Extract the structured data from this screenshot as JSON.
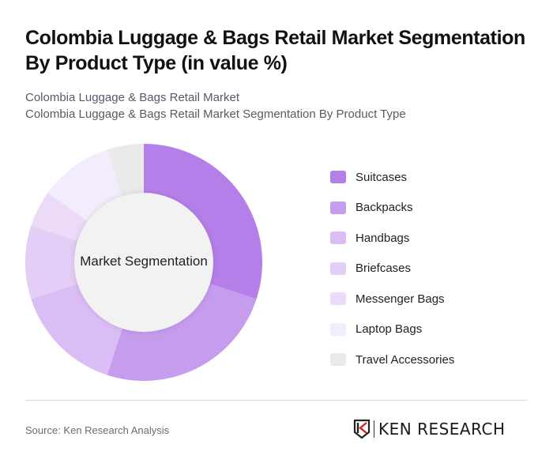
{
  "header": {
    "title": "Colombia Luggage & Bags Retail Market Segmentation By Product Type (in value %)",
    "subtitle_line1": "Colombia Luggage & Bags Retail Market",
    "subtitle_line2": "Colombia Luggage & Bags Retail Market Segmentation By Product Type"
  },
  "chart": {
    "center_label": "Market Segmentation"
  },
  "legend": [
    {
      "label": "Suitcases",
      "color": "#B57FEA"
    },
    {
      "label": "Backpacks",
      "color": "#C69CEE"
    },
    {
      "label": "Handbags",
      "color": "#DABDF5"
    },
    {
      "label": "Briefcases",
      "color": "#E3CEF7"
    },
    {
      "label": "Messenger Bags",
      "color": "#EBDBF9"
    },
    {
      "label": "Laptop Bags",
      "color": "#F3ECFC"
    },
    {
      "label": "Travel Accessories",
      "color": "#EAEAEA"
    }
  ],
  "footer": {
    "source": "Source: Ken Research Analysis",
    "logo_text": "KEN RESEARCH",
    "logo_icon": "ken-research-shield-icon"
  },
  "chart_data": {
    "type": "pie",
    "subtype": "donut",
    "title": "Colombia Luggage & Bags Retail Market Segmentation By Product Type (in value %)",
    "center_label": "Market Segmentation",
    "categories": [
      "Suitcases",
      "Backpacks",
      "Handbags",
      "Briefcases",
      "Messenger Bags",
      "Laptop Bags",
      "Travel Accessories"
    ],
    "values": [
      30,
      25,
      15,
      10,
      5,
      10,
      5
    ],
    "colors": [
      "#B57FEA",
      "#C69CEE",
      "#DABDF5",
      "#E3CEF7",
      "#EBDBF9",
      "#F3ECFC",
      "#EAEAEA"
    ],
    "unit": "%",
    "legend_position": "right",
    "start_angle": "top, clockwise"
  }
}
